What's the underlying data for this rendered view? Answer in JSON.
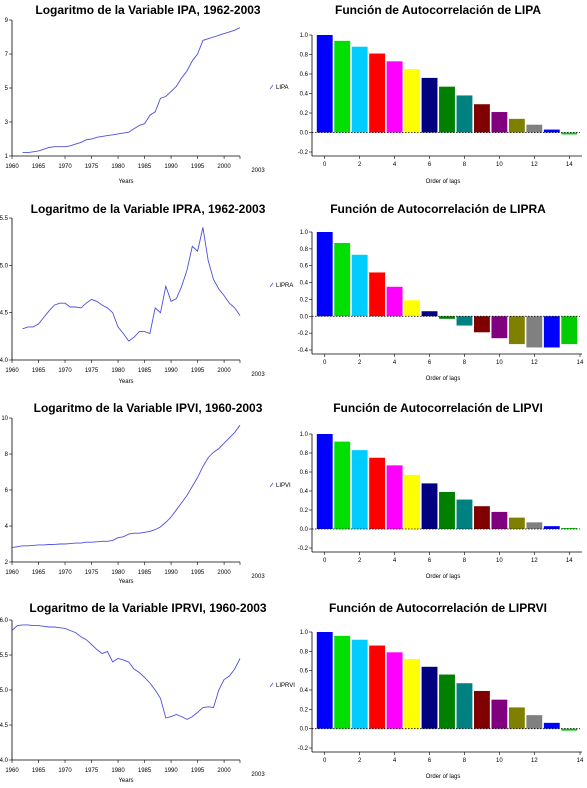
{
  "chart_data": [
    {
      "type": "line",
      "title": "Logaritmo de la Variable IPA, 1962-2003",
      "xlabel": "Years",
      "xlim": [
        1960,
        2003
      ],
      "ylim": [
        1,
        9
      ],
      "x_ticks": [
        "1960",
        "1965",
        "1970",
        "1975",
        "1980",
        "1985",
        "1990",
        "1995",
        "2000",
        "2003"
      ],
      "y_ticks": [
        "1",
        "3",
        "5",
        "7",
        "9"
      ],
      "x": [
        1962,
        1963,
        1964,
        1965,
        1966,
        1967,
        1968,
        1969,
        1970,
        1971,
        1972,
        1973,
        1974,
        1975,
        1976,
        1977,
        1978,
        1979,
        1980,
        1981,
        1982,
        1983,
        1984,
        1985,
        1986,
        1987,
        1988,
        1989,
        1990,
        1991,
        1992,
        1993,
        1994,
        1995,
        1996,
        1997,
        1998,
        1999,
        2000,
        2001,
        2002,
        2003
      ],
      "series": [
        {
          "values": [
            1.2,
            1.2,
            1.25,
            1.3,
            1.4,
            1.5,
            1.55,
            1.55,
            1.55,
            1.6,
            1.7,
            1.8,
            1.95,
            2.0,
            2.1,
            2.15,
            2.2,
            2.25,
            2.3,
            2.35,
            2.4,
            2.6,
            2.8,
            2.9,
            3.4,
            3.6,
            4.4,
            4.5,
            4.8,
            5.1,
            5.6,
            6.0,
            6.6,
            7.0,
            7.8,
            7.9,
            8.0,
            8.1,
            8.2,
            8.3,
            8.4,
            8.55
          ]
        }
      ]
    },
    {
      "type": "bar",
      "title": "Función de Autocorrelación de LIPA",
      "xlabel": "Order of lags",
      "ylim": [
        -0.2,
        1.0
      ],
      "y_ticks": [
        "-0.2",
        "0.0",
        "0.2",
        "0.4",
        "0.6",
        "0.8",
        "1.0"
      ],
      "x_ticks": [
        "0",
        "2",
        "4",
        "6",
        "8",
        "10",
        "12",
        "14"
      ],
      "legend": "LIPA",
      "categories": [
        "0",
        "1",
        "2",
        "3",
        "4",
        "5",
        "6",
        "7",
        "8",
        "9",
        "10",
        "11",
        "12",
        "13",
        "14"
      ],
      "values": [
        1.0,
        0.94,
        0.88,
        0.81,
        0.73,
        0.65,
        0.56,
        0.47,
        0.38,
        0.29,
        0.21,
        0.14,
        0.08,
        0.03,
        -0.02
      ]
    },
    {
      "type": "line",
      "title": "Logaritmo de la Variable IPRA, 1962-2003",
      "xlabel": "Years",
      "xlim": [
        1960,
        2003
      ],
      "ylim": [
        4.0,
        5.5
      ],
      "x_ticks": [
        "1960",
        "1965",
        "1970",
        "1975",
        "1980",
        "1985",
        "1990",
        "1995",
        "2000",
        "2003"
      ],
      "y_ticks": [
        "4.0",
        "4.5",
        "5.0",
        "5.5"
      ],
      "x": [
        1962,
        1963,
        1964,
        1965,
        1966,
        1967,
        1968,
        1969,
        1970,
        1971,
        1972,
        1973,
        1974,
        1975,
        1976,
        1977,
        1978,
        1979,
        1980,
        1981,
        1982,
        1983,
        1984,
        1985,
        1986,
        1987,
        1988,
        1989,
        1990,
        1991,
        1992,
        1993,
        1994,
        1995,
        1996,
        1997,
        1998,
        1999,
        2000,
        2001,
        2002,
        2003
      ],
      "series": [
        {
          "values": [
            4.33,
            4.35,
            4.35,
            4.38,
            4.45,
            4.52,
            4.58,
            4.6,
            4.6,
            4.56,
            4.56,
            4.55,
            4.6,
            4.64,
            4.62,
            4.58,
            4.55,
            4.5,
            4.35,
            4.28,
            4.2,
            4.24,
            4.3,
            4.3,
            4.28,
            4.55,
            4.5,
            4.78,
            4.62,
            4.65,
            4.78,
            4.95,
            5.2,
            5.15,
            5.4,
            5.05,
            4.85,
            4.75,
            4.68,
            4.6,
            4.55,
            4.47
          ]
        }
      ]
    },
    {
      "type": "bar",
      "title": "Función de Autocorrelación de LIPRA",
      "xlabel": "Order of lags",
      "ylim": [
        -0.4,
        1.0
      ],
      "y_ticks": [
        "-0.4",
        "-0.2",
        "0.0",
        "0.2",
        "0.4",
        "0.6",
        "0.8",
        "1.0"
      ],
      "x_ticks": [
        "0",
        "2",
        "4",
        "6",
        "8",
        "10",
        "12",
        "14"
      ],
      "legend": "LIPRA",
      "categories": [
        "0",
        "1",
        "2",
        "3",
        "4",
        "5",
        "6",
        "7",
        "8",
        "9",
        "10",
        "11",
        "12",
        "13",
        "14"
      ],
      "values": [
        1.0,
        0.87,
        0.73,
        0.52,
        0.35,
        0.19,
        0.06,
        -0.03,
        -0.11,
        -0.19,
        -0.26,
        -0.33,
        -0.37,
        -0.37,
        -0.33
      ]
    },
    {
      "type": "line",
      "title": "Logaritmo de la Variable IPVI, 1960-2003",
      "xlabel": "Years",
      "xlim": [
        1960,
        2003
      ],
      "ylim": [
        2,
        10
      ],
      "x_ticks": [
        "1960",
        "1965",
        "1970",
        "1975",
        "1980",
        "1985",
        "1990",
        "1995",
        "2000",
        "2003"
      ],
      "y_ticks": [
        "2",
        "4",
        "6",
        "8",
        "10"
      ],
      "x": [
        1960,
        1961,
        1962,
        1963,
        1964,
        1965,
        1966,
        1967,
        1968,
        1969,
        1970,
        1971,
        1972,
        1973,
        1974,
        1975,
        1976,
        1977,
        1978,
        1979,
        1980,
        1981,
        1982,
        1983,
        1984,
        1985,
        1986,
        1987,
        1988,
        1989,
        1990,
        1991,
        1992,
        1993,
        1994,
        1995,
        1996,
        1997,
        1998,
        1999,
        2000,
        2001,
        2002,
        2003
      ],
      "series": [
        {
          "values": [
            2.8,
            2.85,
            2.9,
            2.9,
            2.92,
            2.95,
            2.95,
            2.97,
            2.98,
            3.0,
            3.0,
            3.02,
            3.05,
            3.05,
            3.1,
            3.1,
            3.12,
            3.15,
            3.15,
            3.2,
            3.35,
            3.4,
            3.55,
            3.6,
            3.6,
            3.65,
            3.7,
            3.8,
            3.95,
            4.2,
            4.5,
            4.9,
            5.3,
            5.7,
            6.2,
            6.7,
            7.3,
            7.8,
            8.1,
            8.3,
            8.6,
            8.9,
            9.2,
            9.6
          ]
        }
      ]
    },
    {
      "type": "bar",
      "title": "Función de Autocorrelación de LIPVI",
      "xlabel": "Order of lags",
      "ylim": [
        -0.2,
        1.0
      ],
      "y_ticks": [
        "-0.2",
        "0.0",
        "0.2",
        "0.4",
        "0.6",
        "0.8",
        "1.0"
      ],
      "x_ticks": [
        "0",
        "2",
        "4",
        "6",
        "8",
        "10",
        "12",
        "14"
      ],
      "legend": "LIPVI",
      "categories": [
        "0",
        "1",
        "2",
        "3",
        "4",
        "5",
        "6",
        "7",
        "8",
        "9",
        "10",
        "11",
        "12",
        "13",
        "14"
      ],
      "values": [
        1.0,
        0.92,
        0.83,
        0.75,
        0.67,
        0.57,
        0.48,
        0.39,
        0.31,
        0.24,
        0.18,
        0.12,
        0.07,
        0.03,
        0.01
      ]
    },
    {
      "type": "line",
      "title": "Logaritmo de la Variable IPRVI, 1960-2003",
      "xlabel": "Years",
      "xlim": [
        1960,
        2003
      ],
      "ylim": [
        4.0,
        6.0
      ],
      "x_ticks": [
        "1960",
        "1965",
        "1970",
        "1975",
        "1980",
        "1985",
        "1990",
        "1995",
        "2000",
        "2003"
      ],
      "y_ticks": [
        "4.0",
        "4.5",
        "5.0",
        "5.5",
        "6.0"
      ],
      "x": [
        1960,
        1961,
        1962,
        1963,
        1964,
        1965,
        1966,
        1967,
        1968,
        1969,
        1970,
        1971,
        1972,
        1973,
        1974,
        1975,
        1976,
        1977,
        1978,
        1979,
        1980,
        1981,
        1982,
        1983,
        1984,
        1985,
        1986,
        1987,
        1988,
        1989,
        1990,
        1991,
        1992,
        1993,
        1994,
        1995,
        1996,
        1997,
        1998,
        1999,
        2000,
        2001,
        2002,
        2003
      ],
      "series": [
        {
          "values": [
            5.85,
            5.92,
            5.93,
            5.93,
            5.92,
            5.92,
            5.91,
            5.9,
            5.9,
            5.89,
            5.88,
            5.85,
            5.82,
            5.76,
            5.72,
            5.65,
            5.58,
            5.52,
            5.55,
            5.4,
            5.45,
            5.43,
            5.4,
            5.3,
            5.25,
            5.18,
            5.1,
            5.0,
            4.88,
            4.6,
            4.62,
            4.65,
            4.62,
            4.58,
            4.62,
            4.68,
            4.75,
            4.76,
            4.75,
            5.0,
            5.15,
            5.2,
            5.3,
            5.45
          ]
        }
      ]
    },
    {
      "type": "bar",
      "title": "Función de Autocorrelación de LIPRVI",
      "xlabel": "Order of lags",
      "ylim": [
        -0.2,
        1.0
      ],
      "y_ticks": [
        "-0.2",
        "0.0",
        "0.2",
        "0.4",
        "0.6",
        "0.8",
        "1.0"
      ],
      "x_ticks": [
        "0",
        "2",
        "4",
        "6",
        "8",
        "10",
        "12",
        "14"
      ],
      "legend": "LIPRVI",
      "categories": [
        "0",
        "1",
        "2",
        "3",
        "4",
        "5",
        "6",
        "7",
        "8",
        "9",
        "10",
        "11",
        "12",
        "13",
        "14"
      ],
      "values": [
        1.0,
        0.96,
        0.92,
        0.86,
        0.79,
        0.72,
        0.64,
        0.56,
        0.47,
        0.39,
        0.3,
        0.22,
        0.14,
        0.06,
        -0.02
      ]
    }
  ],
  "bar_colors": [
    "#0000ff",
    "#00e000",
    "#00ccff",
    "#ff0000",
    "#ff00ff",
    "#ffff00",
    "#000080",
    "#008000",
    "#008080",
    "#800000",
    "#800080",
    "#808000",
    "#808080",
    "#0000ff",
    "#00cc00"
  ],
  "line_color": "#4f4fdf"
}
